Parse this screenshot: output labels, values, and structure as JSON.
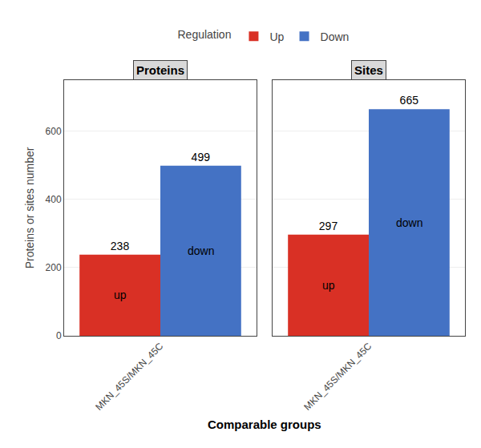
{
  "chart_data": [
    {
      "type": "bar",
      "title": "Proteins",
      "categories": [
        "MKN_45S/MKN_45C"
      ],
      "series": [
        {
          "name": "Up",
          "color": "#D93025",
          "values": [
            238
          ]
        },
        {
          "name": "Down",
          "color": "#4472C4",
          "values": [
            499
          ]
        }
      ],
      "ylabel": "Proteins or sites number",
      "xlabel": "Comparable groups",
      "legend_title": "Regulation",
      "legend": "top",
      "annotations": [
        {
          "text": "up",
          "series": "Up"
        },
        {
          "text": "down",
          "series": "Down"
        }
      ],
      "ylim": [
        0,
        750
      ],
      "yticks": [
        0,
        200,
        400,
        600
      ],
      "grid": true,
      "data_labels": true
    },
    {
      "type": "bar",
      "title": "Sites",
      "categories": [
        "MKN_45S/MKN_45C"
      ],
      "series": [
        {
          "name": "Up",
          "color": "#D93025",
          "values": [
            297
          ]
        },
        {
          "name": "Down",
          "color": "#4472C4",
          "values": [
            665
          ]
        }
      ],
      "annotations": [
        {
          "text": "up",
          "series": "Up"
        },
        {
          "text": "down",
          "series": "Down"
        }
      ],
      "ylim": [
        0,
        750
      ],
      "yticks": [
        0,
        200,
        400,
        600
      ],
      "grid": true,
      "data_labels": true,
      "tick_labels": "x"
    }
  ]
}
